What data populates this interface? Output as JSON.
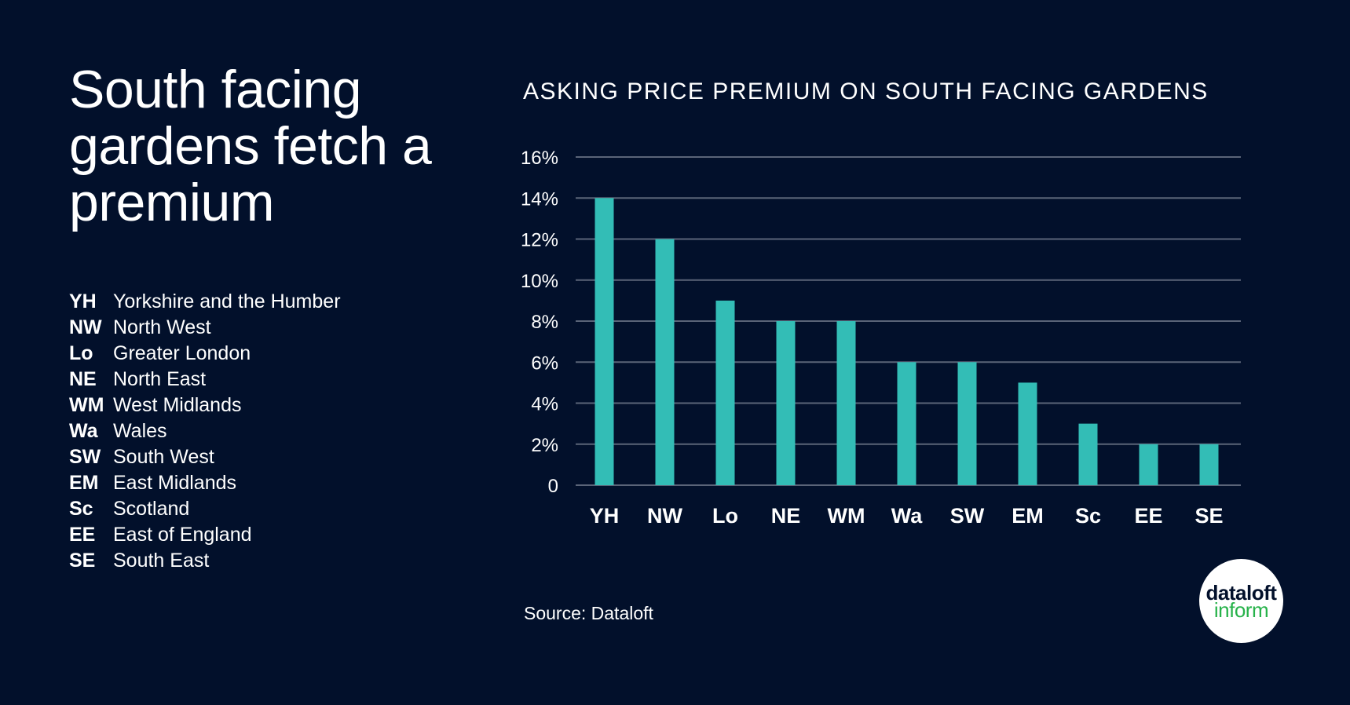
{
  "headline": "South facing gardens fetch a premium",
  "legend": [
    {
      "code": "YH",
      "name": "Yorkshire and the Humber"
    },
    {
      "code": "NW",
      "name": "North West"
    },
    {
      "code": "Lo",
      "name": "Greater London"
    },
    {
      "code": "NE",
      "name": "North East"
    },
    {
      "code": "WM",
      "name": "West Midlands"
    },
    {
      "code": "Wa",
      "name": "Wales"
    },
    {
      "code": "SW",
      "name": "South West"
    },
    {
      "code": "EM",
      "name": "East Midlands"
    },
    {
      "code": "Sc",
      "name": "Scotland"
    },
    {
      "code": "EE",
      "name": "East of England"
    },
    {
      "code": "SE",
      "name": "South East"
    }
  ],
  "source": "Source: Dataloft",
  "logo": {
    "top": "dataloft",
    "bottom": "inform"
  },
  "colors": {
    "background": "#02102b",
    "bar": "#33bdb6",
    "grid": "#5a6478",
    "text": "#ffffff",
    "logo_green": "#27b24a"
  },
  "chart_data": {
    "type": "bar",
    "title": "ASKING PRICE PREMIUM ON SOUTH FACING GARDENS",
    "categories": [
      "YH",
      "NW",
      "Lo",
      "NE",
      "WM",
      "Wa",
      "SW",
      "EM",
      "Sc",
      "EE",
      "SE"
    ],
    "values": [
      14,
      12,
      9,
      8,
      8,
      6,
      6,
      5,
      3,
      2,
      2
    ],
    "unit": "%",
    "ylim": [
      0,
      16
    ],
    "yticks": [
      0,
      2,
      4,
      6,
      8,
      10,
      12,
      14,
      16
    ],
    "ytick_labels": [
      "0",
      "2%",
      "4%",
      "6%",
      "8%",
      "10%",
      "12%",
      "14%",
      "16%"
    ],
    "grid": true,
    "xlabel": "",
    "ylabel": ""
  }
}
